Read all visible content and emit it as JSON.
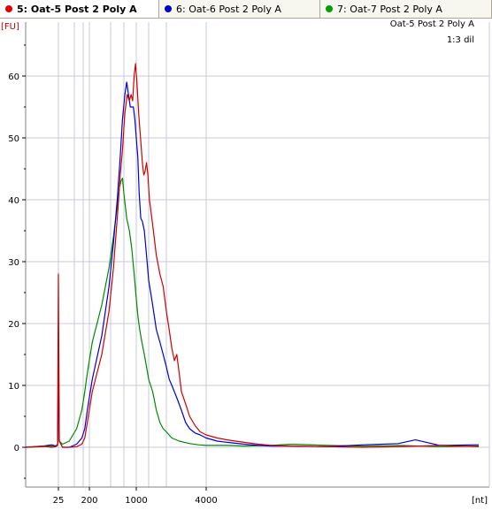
{
  "tabs": [
    {
      "label": "5: Oat-5 Post 2 Poly A",
      "color": "#e00000",
      "active": true
    },
    {
      "label": "6: Oat-6 Post 2 Poly A",
      "color": "#0000cc",
      "active": false
    },
    {
      "label": "7: Oat-7 Post 2 Poly A",
      "color": "#00a000",
      "active": false
    }
  ],
  "chart_info": {
    "sample_name": "Oat-5 Post 2 Poly A",
    "dilution": "1:3 dil"
  },
  "chart_data": {
    "type": "line",
    "title": "",
    "ylabel": "[FU]",
    "xlabel": "[nt]",
    "ylim": [
      -7,
      68
    ],
    "yticks": [
      0,
      10,
      20,
      30,
      40,
      50,
      60
    ],
    "xticks": [
      {
        "value": 25,
        "label": "25"
      },
      {
        "value": 200,
        "label": "200"
      },
      {
        "value": 1000,
        "label": "1000"
      },
      {
        "value": 4000,
        "label": "4000"
      }
    ],
    "grid": true,
    "x_axis_note": "nonlinear size axis (ladder-based); x values are sizes in nt",
    "series": [
      {
        "name": "5: Oat-5 Post 2 Poly A",
        "color": "#d00000",
        "points": [
          [
            5,
            0
          ],
          [
            12,
            0.2
          ],
          [
            18,
            0
          ],
          [
            22,
            0.1
          ],
          [
            24,
            0.5
          ],
          [
            25,
            28
          ],
          [
            26,
            1
          ],
          [
            30,
            0
          ],
          [
            40,
            0
          ],
          [
            60,
            0.1
          ],
          [
            90,
            0.5
          ],
          [
            120,
            1.5
          ],
          [
            160,
            4
          ],
          [
            220,
            9
          ],
          [
            300,
            15
          ],
          [
            380,
            22
          ],
          [
            450,
            29
          ],
          [
            530,
            37
          ],
          [
            600,
            44
          ],
          [
            660,
            48
          ],
          [
            720,
            54
          ],
          [
            770,
            57
          ],
          [
            820,
            56
          ],
          [
            860,
            57
          ],
          [
            900,
            56
          ],
          [
            940,
            60
          ],
          [
            980,
            62
          ],
          [
            1020,
            59
          ],
          [
            1080,
            54
          ],
          [
            1150,
            50
          ],
          [
            1220,
            46
          ],
          [
            1280,
            44
          ],
          [
            1330,
            44.5
          ],
          [
            1400,
            46
          ],
          [
            1460,
            44
          ],
          [
            1520,
            40
          ],
          [
            1600,
            36
          ],
          [
            1700,
            31
          ],
          [
            1800,
            28
          ],
          [
            1900,
            26
          ],
          [
            2000,
            22
          ],
          [
            2100,
            19
          ],
          [
            2200,
            16
          ],
          [
            2300,
            14
          ],
          [
            2400,
            15
          ],
          [
            2500,
            12
          ],
          [
            2600,
            9
          ],
          [
            2800,
            7
          ],
          [
            3000,
            5
          ],
          [
            3300,
            3.5
          ],
          [
            3600,
            2.5
          ],
          [
            4000,
            2
          ],
          [
            4500,
            1.5
          ],
          [
            5000,
            1.2
          ],
          [
            6000,
            0.8
          ],
          [
            7000,
            0.5
          ],
          [
            8000,
            0.3
          ],
          [
            10000,
            0.2
          ],
          [
            13000,
            0.1
          ],
          [
            17000,
            0
          ],
          [
            22000,
            0.1
          ],
          [
            30000,
            0.3
          ],
          [
            40000,
            0.1
          ]
        ]
      },
      {
        "name": "6: Oat-6 Post 2 Poly A",
        "color": "#0000d0",
        "points": [
          [
            5,
            0
          ],
          [
            12,
            0.2
          ],
          [
            18,
            0.4
          ],
          [
            22,
            0.2
          ],
          [
            24,
            0.5
          ],
          [
            25,
            12
          ],
          [
            26,
            1
          ],
          [
            30,
            0
          ],
          [
            40,
            0
          ],
          [
            60,
            0.5
          ],
          [
            90,
            1.5
          ],
          [
            120,
            3
          ],
          [
            160,
            6
          ],
          [
            220,
            11
          ],
          [
            300,
            18
          ],
          [
            380,
            26
          ],
          [
            450,
            33
          ],
          [
            530,
            40
          ],
          [
            600,
            47
          ],
          [
            660,
            53
          ],
          [
            720,
            57
          ],
          [
            760,
            59
          ],
          [
            800,
            57
          ],
          [
            840,
            55
          ],
          [
            880,
            55
          ],
          [
            920,
            55
          ],
          [
            960,
            53
          ],
          [
            1000,
            50
          ],
          [
            1050,
            47
          ],
          [
            1100,
            41
          ],
          [
            1160,
            37
          ],
          [
            1220,
            36.5
          ],
          [
            1300,
            35
          ],
          [
            1400,
            31
          ],
          [
            1500,
            27
          ],
          [
            1600,
            23
          ],
          [
            1700,
            19
          ],
          [
            1800,
            17
          ],
          [
            1900,
            15
          ],
          [
            2000,
            13
          ],
          [
            2100,
            11
          ],
          [
            2200,
            10
          ],
          [
            2400,
            8
          ],
          [
            2600,
            6
          ],
          [
            2800,
            4
          ],
          [
            3000,
            3
          ],
          [
            3300,
            2.3
          ],
          [
            3600,
            2
          ],
          [
            4000,
            1.5
          ],
          [
            4500,
            1
          ],
          [
            5000,
            0.8
          ],
          [
            6000,
            0.5
          ],
          [
            7000,
            0.3
          ],
          [
            8000,
            0.2
          ],
          [
            10000,
            0.2
          ],
          [
            13000,
            0.1
          ],
          [
            17000,
            0.4
          ],
          [
            22000,
            0.6
          ],
          [
            25000,
            1.2
          ],
          [
            30000,
            0.3
          ],
          [
            40000,
            0.4
          ]
        ]
      },
      {
        "name": "7: Oat-7 Post 2 Poly A",
        "color": "#008800",
        "points": [
          [
            5,
            0
          ],
          [
            12,
            0.1
          ],
          [
            18,
            0.2
          ],
          [
            22,
            0.1
          ],
          [
            24,
            0.3
          ],
          [
            25,
            19
          ],
          [
            26,
            1
          ],
          [
            30,
            0.5
          ],
          [
            40,
            1
          ],
          [
            60,
            3
          ],
          [
            90,
            6
          ],
          [
            120,
            9
          ],
          [
            160,
            12
          ],
          [
            220,
            17
          ],
          [
            300,
            23
          ],
          [
            380,
            29
          ],
          [
            450,
            34
          ],
          [
            530,
            39
          ],
          [
            580,
            42
          ],
          [
            620,
            43
          ],
          [
            660,
            43.5
          ],
          [
            700,
            41
          ],
          [
            760,
            37
          ],
          [
            820,
            35
          ],
          [
            880,
            32
          ],
          [
            940,
            28
          ],
          [
            1000,
            24
          ],
          [
            1060,
            21
          ],
          [
            1120,
            19
          ],
          [
            1200,
            17
          ],
          [
            1300,
            15
          ],
          [
            1400,
            13
          ],
          [
            1500,
            11
          ],
          [
            1600,
            9
          ],
          [
            1700,
            6
          ],
          [
            1800,
            4
          ],
          [
            1900,
            3
          ],
          [
            2000,
            2.5
          ],
          [
            2200,
            1.5
          ],
          [
            2500,
            1
          ],
          [
            3000,
            0.6
          ],
          [
            3500,
            0.4
          ],
          [
            4000,
            0.3
          ],
          [
            5000,
            0.3
          ],
          [
            6000,
            0.2
          ],
          [
            8000,
            0.3
          ],
          [
            10000,
            0.5
          ],
          [
            13000,
            0.3
          ],
          [
            17000,
            0.2
          ],
          [
            22000,
            0.3
          ],
          [
            30000,
            0.1
          ],
          [
            40000,
            0.2
          ]
        ]
      }
    ]
  }
}
